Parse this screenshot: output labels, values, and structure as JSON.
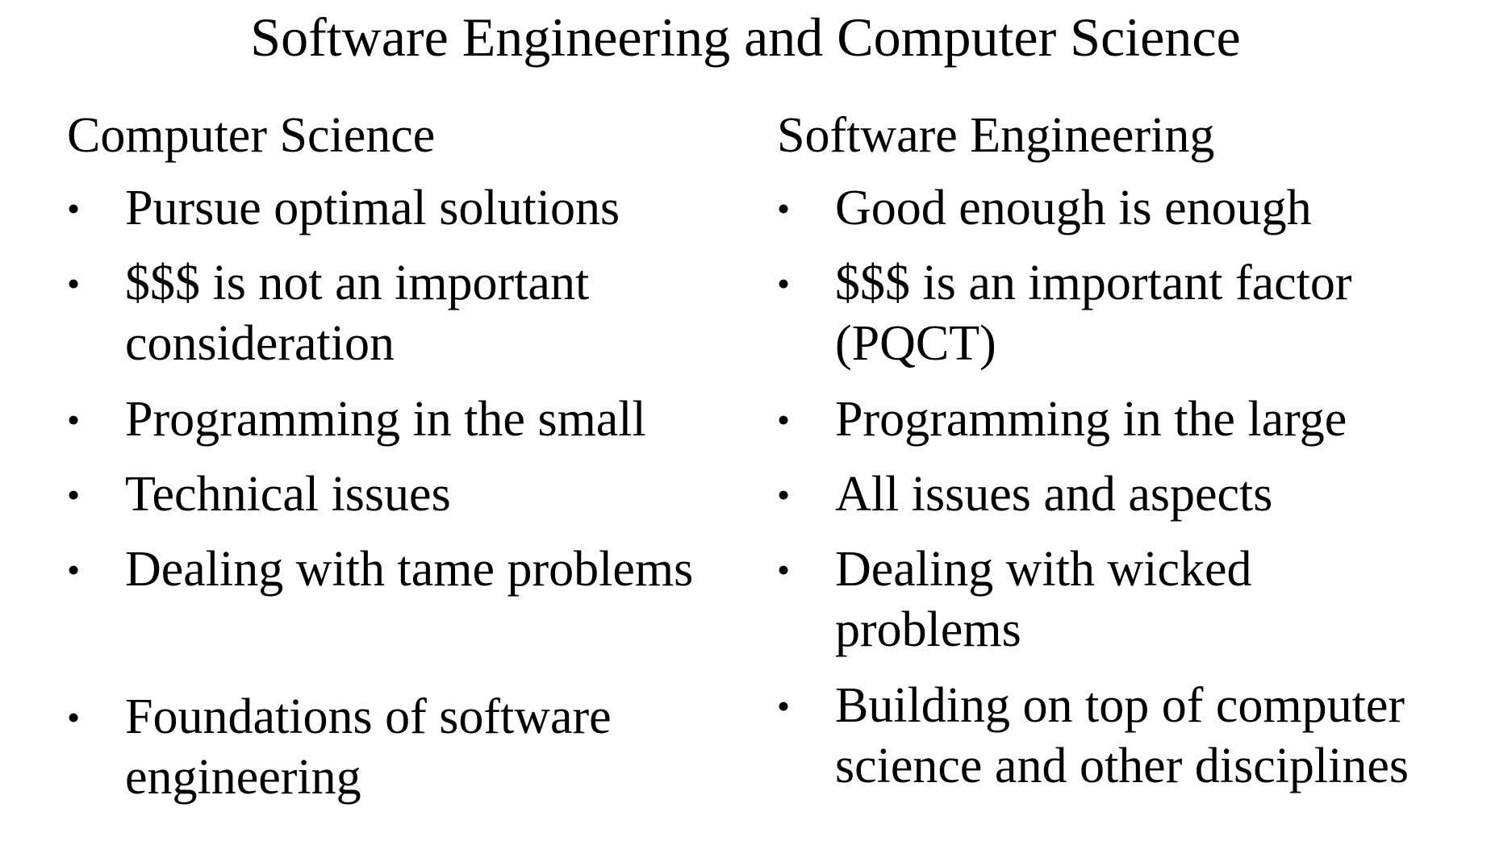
{
  "title": "Software Engineering and Computer Science",
  "left": {
    "heading": "Computer Science",
    "items": [
      {
        "lines": [
          "Pursue optimal solutions"
        ]
      },
      {
        "lines": [
          "$$$ is not an important",
          "consideration"
        ]
      },
      {
        "lines": [
          "Programming in the small"
        ]
      },
      {
        "lines": [
          "Technical issues"
        ]
      },
      {
        "lines": [
          "Dealing with tame problems"
        ]
      },
      {
        "lines": [
          "Foundations of software",
          "engineering"
        ]
      }
    ]
  },
  "right": {
    "heading": "Software Engineering",
    "items": [
      {
        "lines": [
          "Good enough is enough"
        ]
      },
      {
        "lines": [
          "$$$ is an important factor",
          "(PQCT)"
        ]
      },
      {
        "lines": [
          "Programming in the large"
        ]
      },
      {
        "lines": [
          "All issues and aspects"
        ]
      },
      {
        "lines": [
          "Dealing with wicked",
          "problems"
        ]
      },
      {
        "lines": [
          "Building on top of computer",
          "science and other disciplines"
        ]
      }
    ]
  },
  "bullet_glyph": "•"
}
